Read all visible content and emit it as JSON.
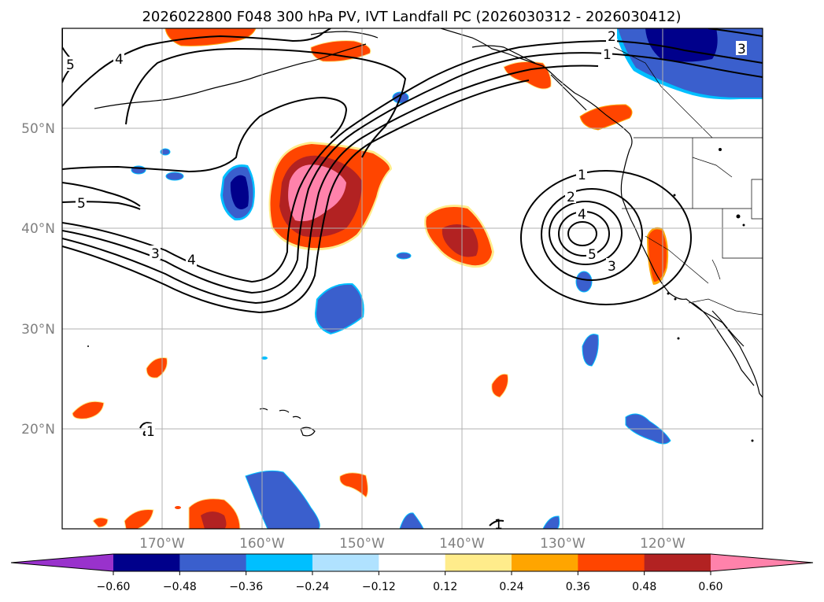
{
  "title": "2026022800 F048 300 hPa PV, IVT Landfall PC (2026030312 - 2026030412)",
  "map": {
    "lat_labels": [
      "50°N",
      "40°N",
      "30°N",
      "20°N"
    ],
    "lon_labels": [
      "170°W",
      "160°W",
      "150°W",
      "140°W",
      "130°W",
      "120°W"
    ],
    "contour_color": "#000000",
    "contour_labels": [
      "5",
      "4",
      "5",
      "3",
      "4",
      "2",
      "1",
      "3",
      "1",
      "2",
      "4",
      "5",
      "3",
      "1",
      "1"
    ]
  },
  "colorbar": {
    "ticks": [
      "−0.60",
      "−0.48",
      "−0.36",
      "−0.24",
      "−0.12",
      "0.12",
      "0.24",
      "0.36",
      "0.48",
      "0.60"
    ],
    "colors": [
      "#9932cc",
      "#00008b",
      "#3a5fcd",
      "#00bfff",
      "#b0e2ff",
      "#ffffff",
      "#ffec8b",
      "#ffa500",
      "#ff4500",
      "#b22222",
      "#ff82ab"
    ],
    "extend": "both"
  }
}
